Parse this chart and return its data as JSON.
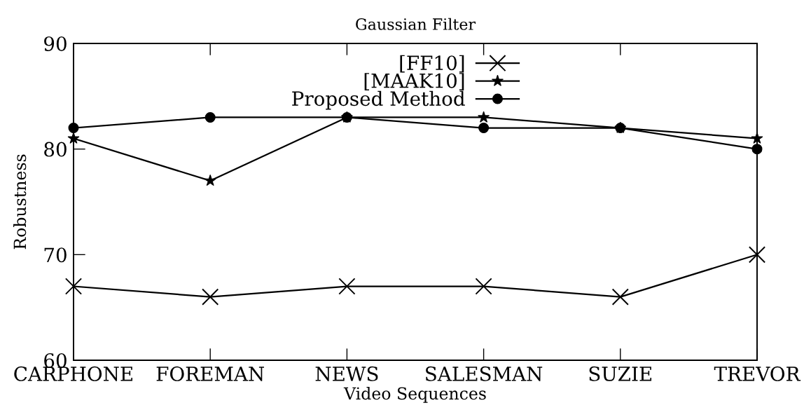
{
  "chart_data": {
    "type": "line",
    "title": "Gaussian Filter",
    "xlabel": "Video Sequences",
    "ylabel": "Robustness",
    "categories": [
      "CARPHONE",
      "FOREMAN",
      "NEWS",
      "SALESMAN",
      "SUZIE",
      "TREVOR"
    ],
    "series": [
      {
        "name": "[FF10]",
        "color": "#000000",
        "marker": "cross",
        "values": [
          67,
          66,
          67,
          67,
          66,
          70
        ]
      },
      {
        "name": "[MAAK10]",
        "color": "#000000",
        "marker": "star",
        "values": [
          81,
          77,
          83,
          83,
          82,
          81
        ]
      },
      {
        "name": "Proposed Method",
        "color": "#000000",
        "marker": "circle",
        "values": [
          82,
          83,
          83,
          82,
          82,
          80
        ]
      }
    ],
    "ylim": [
      60,
      90
    ],
    "yticks": [
      60,
      70,
      80,
      90
    ],
    "grid": false,
    "legend": "top",
    "line_style": "solid"
  }
}
